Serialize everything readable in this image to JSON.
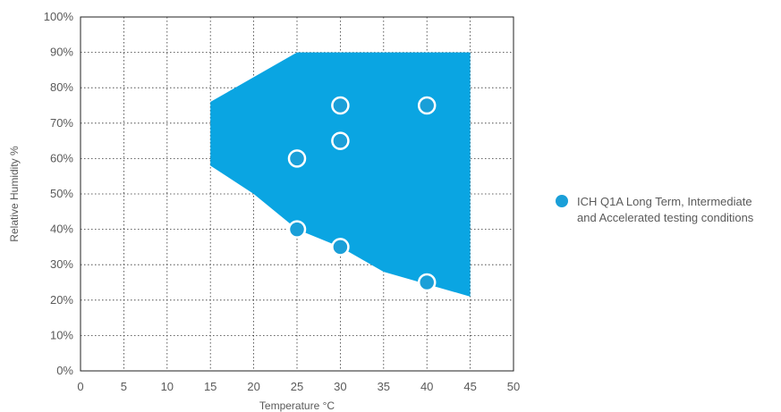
{
  "chart_data": {
    "type": "scatter",
    "title": "",
    "xlabel": "Temperature °C",
    "ylabel": "Relative Humidity %",
    "xlim": [
      0,
      50
    ],
    "ylim": [
      0,
      100
    ],
    "x_ticks": [
      0,
      5,
      10,
      15,
      20,
      25,
      30,
      35,
      40,
      45,
      50
    ],
    "y_ticks": [
      0,
      10,
      20,
      30,
      40,
      50,
      60,
      70,
      80,
      90,
      100
    ],
    "y_tick_labels": [
      "0%",
      "10%",
      "20%",
      "30%",
      "40%",
      "50%",
      "60%",
      "70%",
      "80%",
      "90%",
      "100%"
    ],
    "x_tick_labels": [
      "0",
      "5",
      "10",
      "15",
      "20",
      "25",
      "30",
      "35",
      "40",
      "45",
      "50"
    ],
    "grid": true,
    "legend_position": "right",
    "colors": {
      "region": "#0aa5e2",
      "point": "#1a9fd8",
      "point_border": "#ffffff",
      "grid": "#333333"
    },
    "region_polygon": [
      {
        "x": 15,
        "y": 76
      },
      {
        "x": 25,
        "y": 90
      },
      {
        "x": 45,
        "y": 90
      },
      {
        "x": 45,
        "y": 21
      },
      {
        "x": 35,
        "y": 28
      },
      {
        "x": 30,
        "y": 35
      },
      {
        "x": 25,
        "y": 40
      },
      {
        "x": 20,
        "y": 50
      },
      {
        "x": 15,
        "y": 58
      }
    ],
    "series": [
      {
        "name": "ICH Q1A Long Term, Intermediate and Accelerated testing conditions",
        "legend_lines": [
          "ICH Q1A Long Term, Intermediate",
          "and Accelerated testing conditions"
        ],
        "points": [
          {
            "x": 25,
            "y": 60
          },
          {
            "x": 25,
            "y": 40
          },
          {
            "x": 30,
            "y": 75
          },
          {
            "x": 30,
            "y": 65
          },
          {
            "x": 30,
            "y": 35
          },
          {
            "x": 40,
            "y": 75
          },
          {
            "x": 40,
            "y": 25
          }
        ]
      }
    ]
  }
}
